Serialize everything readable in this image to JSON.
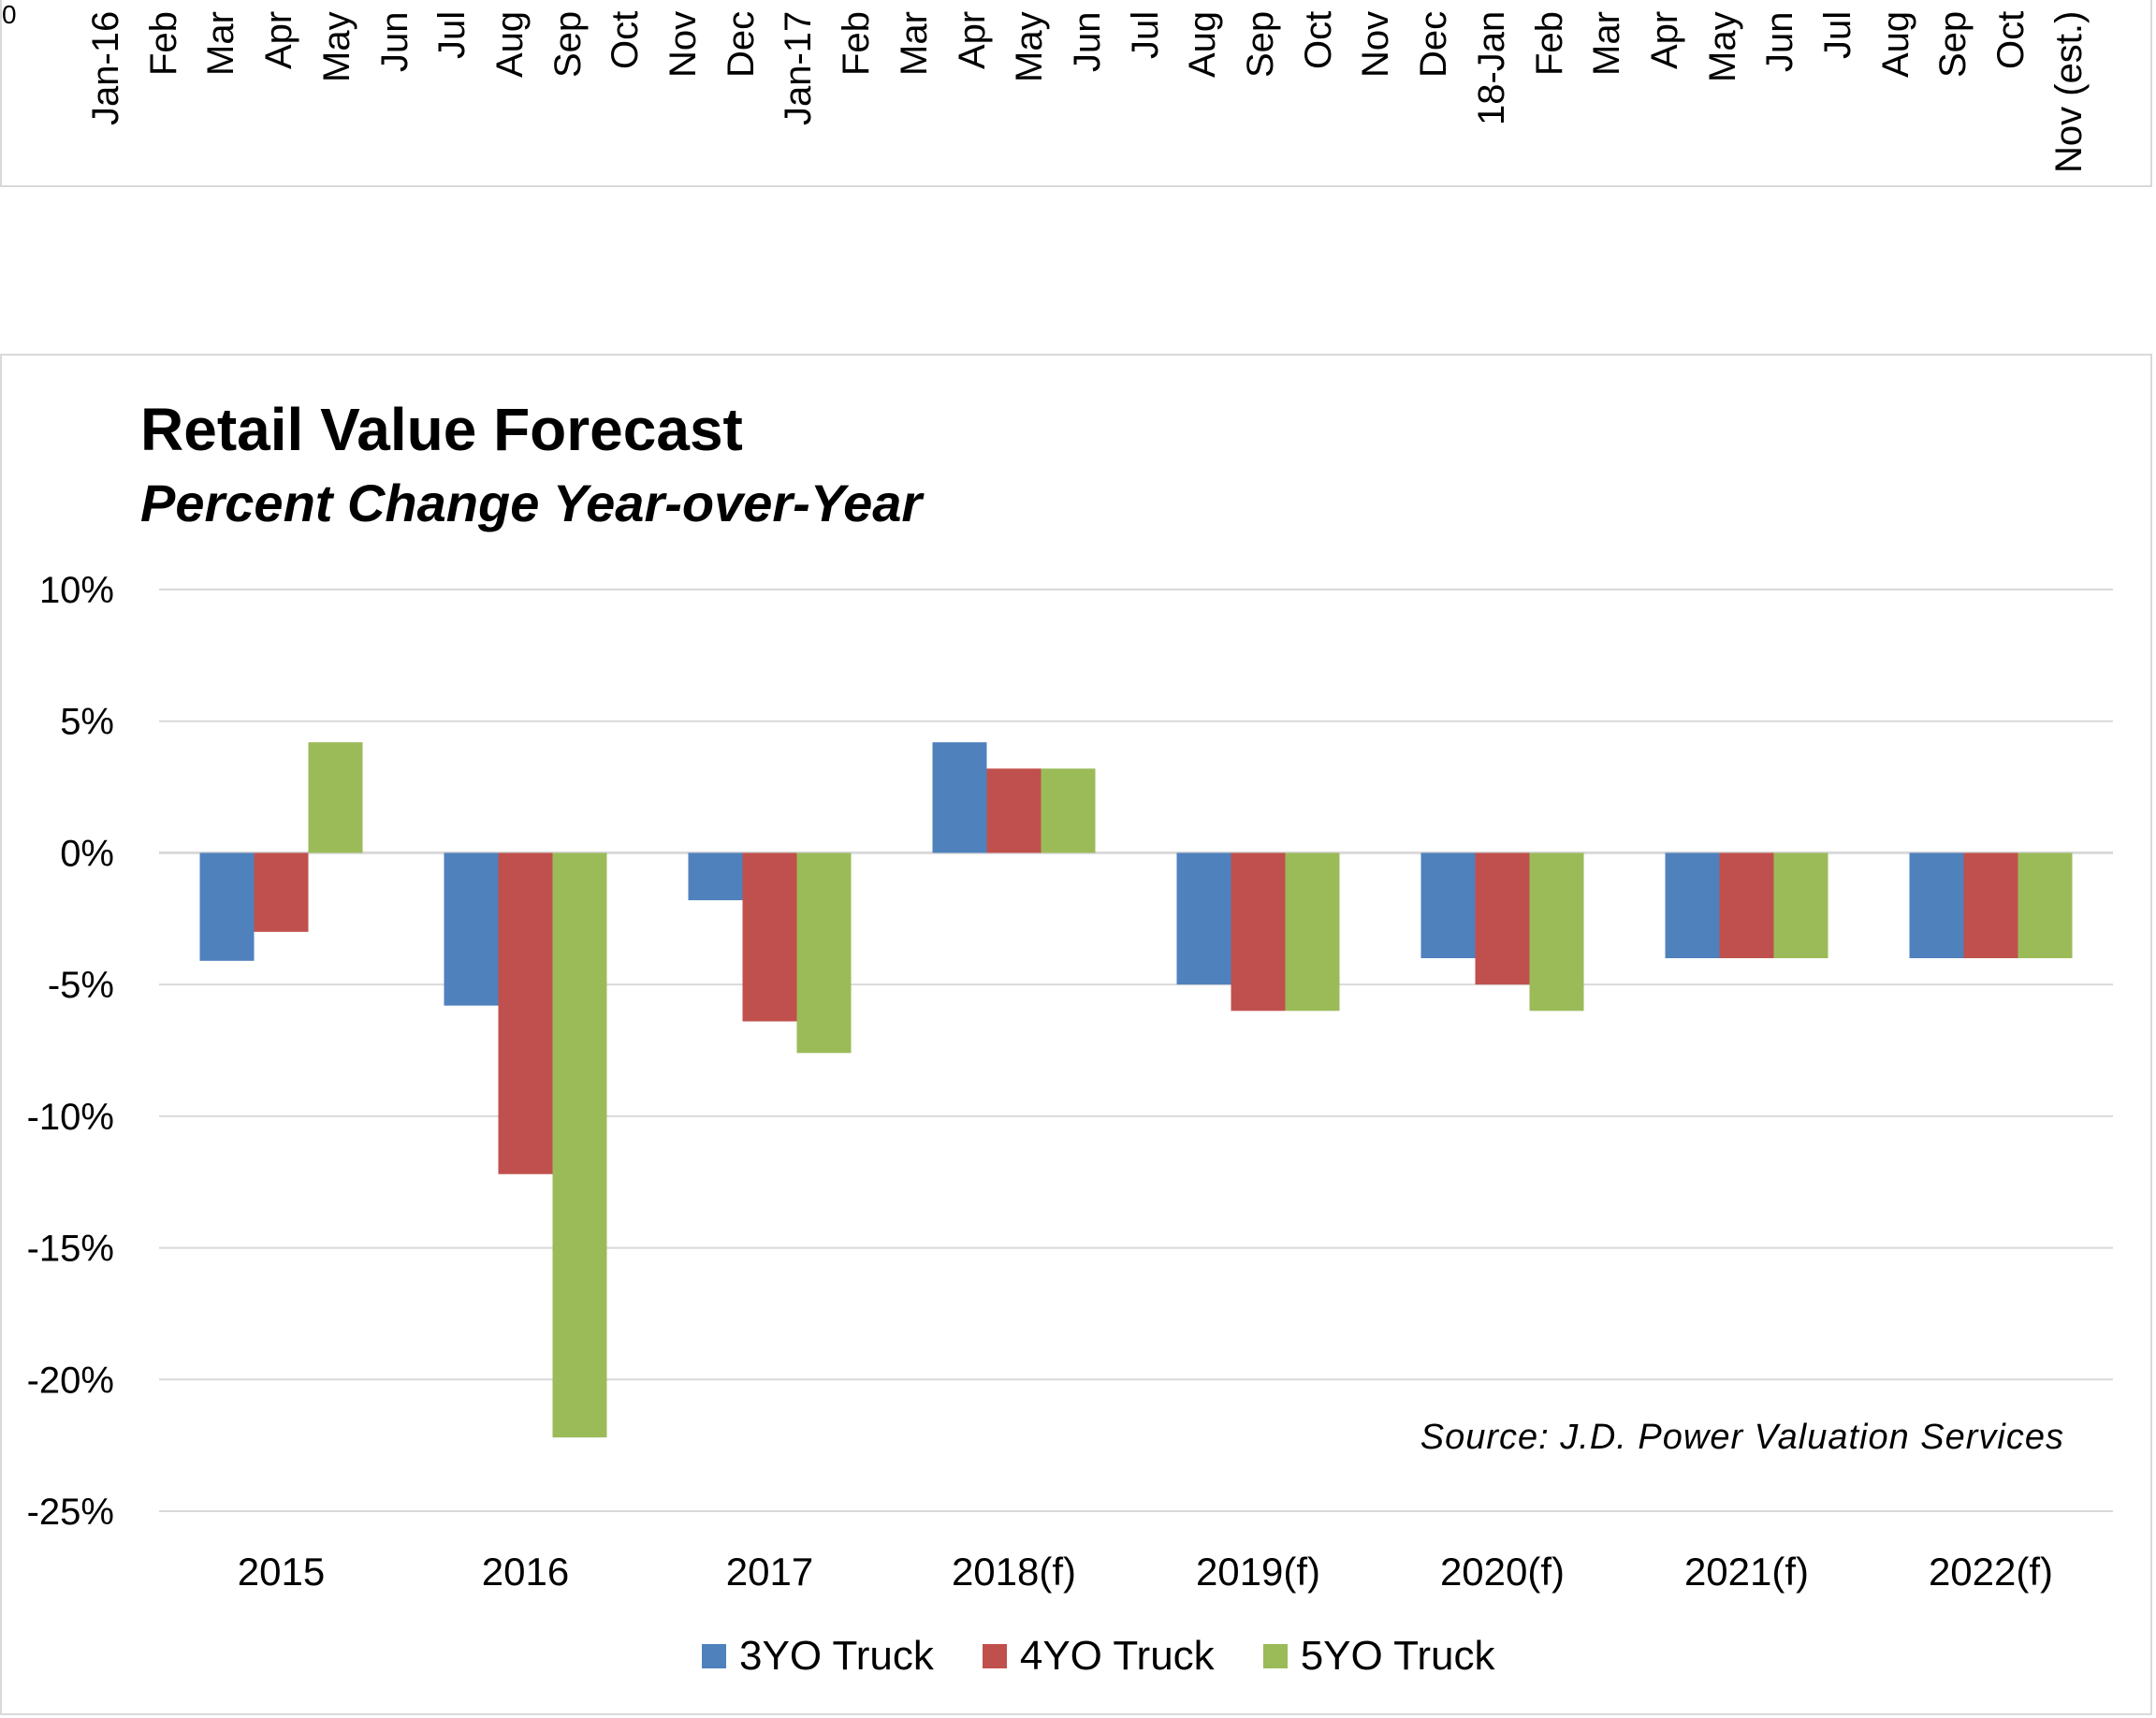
{
  "top_axis": {
    "zero_tick": "0",
    "months": [
      "Jan-16",
      "Feb",
      "Mar",
      "Apr",
      "May",
      "Jun",
      "Jul",
      "Aug",
      "Sep",
      "Oct",
      "Nov",
      "Dec",
      "Jan-17",
      "Feb",
      "Mar",
      "Apr",
      "May",
      "Jun",
      "Jul",
      "Aug",
      "Sep",
      "Oct",
      "Nov",
      "Dec",
      "18-Jan",
      "Feb",
      "Mar",
      "Apr",
      "May",
      "Jun",
      "Jul",
      "Aug",
      "Sep",
      "Oct",
      "Nov (est.)"
    ]
  },
  "colors": {
    "series_1": "#4F81BD",
    "series_2": "#C0504D",
    "series_3": "#9BBB59",
    "grid": "#d9d9d9"
  },
  "chart_data": {
    "type": "bar",
    "title": "Retail Value Forecast",
    "subtitle": "Percent Change Year-over-Year",
    "categories": [
      "2015",
      "2016",
      "2017",
      "2018(f)",
      "2019(f)",
      "2020(f)",
      "2021(f)",
      "2022(f)"
    ],
    "series": [
      {
        "name": "3YO Truck",
        "values": [
          -4.1,
          -5.8,
          -1.8,
          4.2,
          -5.0,
          -4.0,
          -4.0,
          -4.0
        ]
      },
      {
        "name": "4YO Truck",
        "values": [
          -3.0,
          -12.2,
          -6.4,
          3.2,
          -6.0,
          -5.0,
          -4.0,
          -4.0
        ]
      },
      {
        "name": "5YO Truck",
        "values": [
          4.2,
          -22.2,
          -7.6,
          3.2,
          -6.0,
          -6.0,
          -4.0,
          -4.0
        ]
      }
    ],
    "y_ticks": [
      "10%",
      "5%",
      "0%",
      "-5%",
      "-10%",
      "-15%",
      "-20%",
      "-25%"
    ],
    "ylim": [
      -25,
      10
    ],
    "grid": true,
    "legend_position": "bottom",
    "source": "Source:  J.D. Power  Valuation  Services"
  }
}
